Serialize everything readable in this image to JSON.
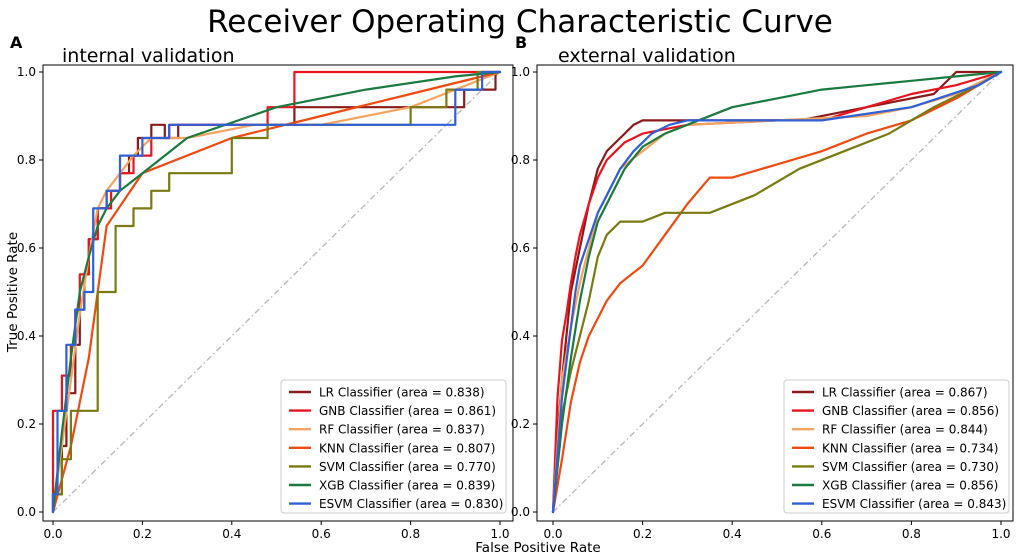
{
  "title": "Receiver Operating Characteristic Curve",
  "chart_data": [
    {
      "type": "line",
      "panel_label": "A",
      "title": "internal validation",
      "xlabel": "False Positive Rate",
      "ylabel": "True Positive Rate",
      "xlim": [
        0.0,
        1.0
      ],
      "ylim": [
        0.0,
        1.0
      ],
      "xticks": [
        "0.0",
        "0.2",
        "0.4",
        "0.6",
        "0.8",
        "1.0"
      ],
      "yticks": [
        "0.0",
        "0.2",
        "0.4",
        "0.6",
        "0.8",
        "1.0"
      ],
      "grid": false,
      "legend_position": "lower-right",
      "reference_line": {
        "style": "dash-dot",
        "color": "#bbbbbb",
        "x": [
          0,
          1
        ],
        "y": [
          0,
          1
        ]
      },
      "series": [
        {
          "name": "LR Classifier (area = 0.838)",
          "color": "#8b1a1a",
          "x": [
            0,
            0,
            0.02,
            0.02,
            0.03,
            0.03,
            0.05,
            0.05,
            0.06,
            0.06,
            0.07,
            0.07,
            0.08,
            0.08,
            0.1,
            0.1,
            0.12,
            0.12,
            0.15,
            0.15,
            0.17,
            0.17,
            0.19,
            0.19,
            0.22,
            0.22,
            0.25,
            0.25,
            0.28,
            0.28,
            0.32,
            0.32,
            0.54,
            0.54,
            0.92,
            0.92,
            0.99,
            0.99,
            1.0
          ],
          "y": [
            0,
            0.04,
            0.04,
            0.15,
            0.15,
            0.27,
            0.27,
            0.38,
            0.38,
            0.46,
            0.46,
            0.54,
            0.54,
            0.62,
            0.62,
            0.69,
            0.69,
            0.73,
            0.73,
            0.77,
            0.77,
            0.81,
            0.81,
            0.85,
            0.85,
            0.88,
            0.88,
            0.85,
            0.85,
            0.88,
            0.88,
            0.88,
            0.88,
            0.92,
            0.92,
            0.96,
            0.96,
            1.0,
            1.0
          ]
        },
        {
          "name": "GNB Classifier (area = 0.861)",
          "color": "#e8141e",
          "x": [
            0,
            0,
            0.02,
            0.02,
            0.04,
            0.04,
            0.05,
            0.05,
            0.06,
            0.06,
            0.08,
            0.08,
            0.1,
            0.1,
            0.13,
            0.13,
            0.15,
            0.15,
            0.18,
            0.18,
            0.22,
            0.22,
            0.26,
            0.26,
            0.3,
            0.3,
            0.48,
            0.48,
            0.54,
            0.54,
            1.0
          ],
          "y": [
            0,
            0.23,
            0.23,
            0.31,
            0.31,
            0.38,
            0.38,
            0.46,
            0.46,
            0.54,
            0.54,
            0.62,
            0.62,
            0.69,
            0.69,
            0.73,
            0.73,
            0.77,
            0.77,
            0.81,
            0.81,
            0.85,
            0.85,
            0.88,
            0.88,
            0.88,
            0.88,
            0.92,
            0.92,
            1.0,
            1.0
          ]
        },
        {
          "name": "RF Classifier (area = 0.837)",
          "color": "#f4a460",
          "x": [
            0,
            0.02,
            0.04,
            0.06,
            0.08,
            0.1,
            0.12,
            0.15,
            0.18,
            0.22,
            0.26,
            0.3,
            0.45,
            0.6,
            0.8,
            0.9,
            1.0
          ],
          "y": [
            0,
            0.15,
            0.3,
            0.45,
            0.58,
            0.69,
            0.73,
            0.77,
            0.81,
            0.85,
            0.85,
            0.85,
            0.88,
            0.88,
            0.92,
            0.96,
            1.0
          ],
          "step": false
        },
        {
          "name": "KNN Classifier (area = 0.807)",
          "color": "#f04a10",
          "x": [
            0,
            0.04,
            0.08,
            0.12,
            0.2,
            0.4,
            0.6,
            0.8,
            1.0
          ],
          "y": [
            0,
            0.15,
            0.35,
            0.65,
            0.77,
            0.85,
            0.9,
            0.95,
            1.0
          ],
          "step": false
        },
        {
          "name": "SVM Classifier (area = 0.770)",
          "color": "#7a7a10",
          "x": [
            0,
            0,
            0.02,
            0.02,
            0.04,
            0.04,
            0.1,
            0.1,
            0.14,
            0.14,
            0.18,
            0.18,
            0.22,
            0.22,
            0.26,
            0.26,
            0.3,
            0.3,
            0.4,
            0.4,
            0.48,
            0.48,
            0.8,
            0.8,
            0.88,
            0.88,
            0.95,
            0.95,
            1.0
          ],
          "y": [
            0,
            0.04,
            0.04,
            0.12,
            0.12,
            0.23,
            0.23,
            0.5,
            0.5,
            0.65,
            0.65,
            0.69,
            0.69,
            0.73,
            0.73,
            0.77,
            0.77,
            0.77,
            0.77,
            0.85,
            0.85,
            0.88,
            0.88,
            0.92,
            0.92,
            0.96,
            0.96,
            1.0,
            1.0
          ],
          "step": true
        },
        {
          "name": "XGB Classifier (area = 0.839)",
          "color": "#1a7a40",
          "x": [
            0,
            0.02,
            0.04,
            0.06,
            0.08,
            0.1,
            0.12,
            0.15,
            0.2,
            0.25,
            0.3,
            0.5,
            0.7,
            0.9,
            1.0
          ],
          "y": [
            0,
            0.18,
            0.35,
            0.5,
            0.58,
            0.65,
            0.69,
            0.73,
            0.77,
            0.81,
            0.85,
            0.92,
            0.96,
            0.99,
            1.0
          ],
          "step": false
        },
        {
          "name": "ESVM Classifier (area = 0.830)",
          "color": "#2f60d6",
          "x": [
            0,
            0,
            0.01,
            0.01,
            0.03,
            0.03,
            0.05,
            0.05,
            0.07,
            0.07,
            0.09,
            0.09,
            0.12,
            0.12,
            0.15,
            0.15,
            0.2,
            0.2,
            0.26,
            0.26,
            0.32,
            0.32,
            0.9,
            0.9,
            0.96,
            0.96,
            1.0
          ],
          "y": [
            0,
            0.04,
            0.04,
            0.23,
            0.23,
            0.38,
            0.38,
            0.46,
            0.46,
            0.5,
            0.5,
            0.69,
            0.69,
            0.73,
            0.73,
            0.81,
            0.81,
            0.85,
            0.85,
            0.88,
            0.88,
            0.88,
            0.88,
            0.96,
            0.96,
            1.0,
            1.0
          ],
          "step": true
        }
      ]
    },
    {
      "type": "line",
      "panel_label": "B",
      "title": "external validation",
      "xlabel": "",
      "ylabel": "",
      "xlim": [
        0.0,
        1.0
      ],
      "ylim": [
        0.0,
        1.0
      ],
      "xticks": [
        "0.0",
        "0.2",
        "0.4",
        "0.6",
        "0.8",
        "1.0"
      ],
      "yticks": [
        "0.0",
        "0.2",
        "0.4",
        "0.6",
        "0.8",
        "1.0"
      ],
      "grid": false,
      "legend_position": "lower-right",
      "reference_line": {
        "style": "dash-dot",
        "color": "#bbbbbb",
        "x": [
          0,
          1
        ],
        "y": [
          0,
          1
        ]
      },
      "series": [
        {
          "name": "LR Classifier (area = 0.867)",
          "color": "#8b1a1a",
          "x": [
            0,
            0.01,
            0.02,
            0.03,
            0.04,
            0.05,
            0.06,
            0.07,
            0.08,
            0.09,
            0.1,
            0.12,
            0.14,
            0.16,
            0.18,
            0.2,
            0.25,
            0.3,
            0.55,
            0.7,
            0.85,
            0.9,
            1.0
          ],
          "y": [
            0,
            0.18,
            0.3,
            0.4,
            0.5,
            0.55,
            0.6,
            0.65,
            0.7,
            0.74,
            0.78,
            0.82,
            0.84,
            0.86,
            0.88,
            0.89,
            0.89,
            0.89,
            0.89,
            0.92,
            0.95,
            1.0,
            1.0
          ],
          "step": true
        },
        {
          "name": "GNB Classifier (area = 0.856)",
          "color": "#e8141e",
          "x": [
            0,
            0.01,
            0.02,
            0.03,
            0.04,
            0.05,
            0.06,
            0.08,
            0.1,
            0.12,
            0.14,
            0.16,
            0.2,
            0.3,
            0.5,
            0.6,
            0.7,
            0.8,
            0.9,
            1.0
          ],
          "y": [
            0,
            0.26,
            0.39,
            0.45,
            0.52,
            0.58,
            0.63,
            0.7,
            0.76,
            0.8,
            0.82,
            0.84,
            0.86,
            0.88,
            0.89,
            0.89,
            0.92,
            0.95,
            0.97,
            1.0
          ],
          "step": true
        },
        {
          "name": "RF Classifier (area = 0.844)",
          "color": "#f4a460",
          "x": [
            0,
            0.02,
            0.04,
            0.06,
            0.08,
            0.1,
            0.12,
            0.15,
            0.2,
            0.25,
            0.3,
            0.5,
            0.7,
            0.8,
            0.9,
            1.0
          ],
          "y": [
            0,
            0.3,
            0.42,
            0.52,
            0.6,
            0.68,
            0.72,
            0.78,
            0.82,
            0.86,
            0.88,
            0.89,
            0.9,
            0.92,
            0.95,
            1.0
          ],
          "step": false
        },
        {
          "name": "KNN Classifier (area = 0.734)",
          "color": "#f04a10",
          "x": [
            0,
            0.02,
            0.04,
            0.06,
            0.08,
            0.1,
            0.12,
            0.15,
            0.2,
            0.25,
            0.3,
            0.35,
            0.4,
            0.5,
            0.6,
            0.7,
            0.8,
            0.9,
            1.0
          ],
          "y": [
            0,
            0.12,
            0.25,
            0.34,
            0.4,
            0.44,
            0.48,
            0.52,
            0.56,
            0.63,
            0.7,
            0.76,
            0.76,
            0.79,
            0.82,
            0.86,
            0.89,
            0.94,
            1.0
          ],
          "step": true
        },
        {
          "name": "SVM Classifier (area = 0.730)",
          "color": "#7a7a10",
          "x": [
            0,
            0.01,
            0.02,
            0.04,
            0.06,
            0.08,
            0.1,
            0.12,
            0.15,
            0.2,
            0.25,
            0.35,
            0.45,
            0.55,
            0.65,
            0.75,
            0.85,
            0.95,
            1.0
          ],
          "y": [
            0,
            0.12,
            0.22,
            0.32,
            0.4,
            0.48,
            0.58,
            0.63,
            0.66,
            0.66,
            0.68,
            0.68,
            0.72,
            0.78,
            0.82,
            0.86,
            0.92,
            0.97,
            1.0
          ],
          "step": true
        },
        {
          "name": "XGB Classifier (area = 0.856)",
          "color": "#1a7a40",
          "x": [
            0,
            0.02,
            0.04,
            0.06,
            0.08,
            0.1,
            0.13,
            0.16,
            0.2,
            0.25,
            0.3,
            0.4,
            0.5,
            0.6,
            0.7,
            0.8,
            0.9,
            1.0
          ],
          "y": [
            0,
            0.2,
            0.35,
            0.48,
            0.58,
            0.66,
            0.72,
            0.78,
            0.83,
            0.86,
            0.88,
            0.92,
            0.94,
            0.96,
            0.97,
            0.98,
            0.99,
            1.0
          ],
          "step": false
        },
        {
          "name": "ESVM Classifier (area = 0.843)",
          "color": "#2f60d6",
          "x": [
            0,
            0.01,
            0.02,
            0.03,
            0.04,
            0.05,
            0.06,
            0.08,
            0.1,
            0.12,
            0.15,
            0.18,
            0.22,
            0.26,
            0.3,
            0.4,
            0.6,
            0.8,
            0.95,
            1.0
          ],
          "y": [
            0,
            0.13,
            0.26,
            0.34,
            0.42,
            0.5,
            0.56,
            0.62,
            0.68,
            0.72,
            0.78,
            0.82,
            0.86,
            0.88,
            0.89,
            0.89,
            0.89,
            0.92,
            0.97,
            1.0
          ],
          "step": true
        }
      ]
    }
  ]
}
